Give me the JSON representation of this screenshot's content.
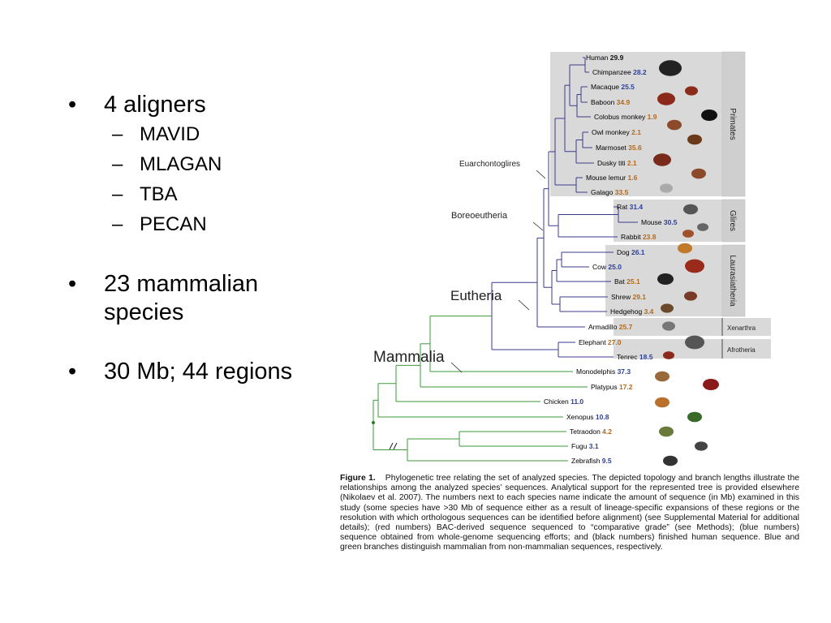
{
  "bullets": [
    {
      "text": "4 aligners",
      "sub": [
        "MAVID",
        "MLAGAN",
        "TBA",
        "PECAN"
      ]
    },
    {
      "text": "23 mammalian species",
      "sub": []
    },
    {
      "text": "30 Mb; 44 regions",
      "sub": []
    }
  ],
  "bullet_symbol": "•",
  "dash_symbol": "–",
  "figure": {
    "species": [
      {
        "name": "Human",
        "value": "29.9",
        "color": "black"
      },
      {
        "name": "Chimpanzee",
        "value": "28.2",
        "color": "blue"
      },
      {
        "name": "Macaque",
        "value": "25.5",
        "color": "blue"
      },
      {
        "name": "Baboon",
        "value": "34.9",
        "color": "red"
      },
      {
        "name": "Colobus monkey",
        "value": "1.9",
        "color": "red"
      },
      {
        "name": "Owl monkey",
        "value": "2.1",
        "color": "red"
      },
      {
        "name": "Marmoset",
        "value": "35.6",
        "color": "red"
      },
      {
        "name": "Dusky titi",
        "value": "2.1",
        "color": "red"
      },
      {
        "name": "Mouse lemur",
        "value": "1.6",
        "color": "red"
      },
      {
        "name": "Galago",
        "value": "33.5",
        "color": "red"
      },
      {
        "name": "Rat",
        "value": "31.4",
        "color": "blue"
      },
      {
        "name": "Mouse",
        "value": "30.5",
        "color": "blue"
      },
      {
        "name": "Rabbit",
        "value": "23.8",
        "color": "red"
      },
      {
        "name": "Dog",
        "value": "26.1",
        "color": "blue"
      },
      {
        "name": "Cow",
        "value": "25.0",
        "color": "blue"
      },
      {
        "name": "Bat",
        "value": "25.1",
        "color": "red"
      },
      {
        "name": "Shrew",
        "value": "29.1",
        "color": "red"
      },
      {
        "name": "Hedgehog",
        "value": "3.4",
        "color": "red"
      },
      {
        "name": "Armadillo",
        "value": "25.7",
        "color": "red"
      },
      {
        "name": "Elephant",
        "value": "27.0",
        "color": "red"
      },
      {
        "name": "Tenrec",
        "value": "18.5",
        "color": "blue"
      },
      {
        "name": "Monodelphis",
        "value": "37.3",
        "color": "blue"
      },
      {
        "name": "Platypus",
        "value": "17.2",
        "color": "red"
      },
      {
        "name": "Chicken",
        "value": "11.0",
        "color": "blue"
      },
      {
        "name": "Xenopus",
        "value": "10.8",
        "color": "blue"
      },
      {
        "name": "Tetraodon",
        "value": "4.2",
        "color": "red"
      },
      {
        "name": "Fugu",
        "value": "3.1",
        "color": "blue"
      },
      {
        "name": "Zebrafish",
        "value": "9.5",
        "color": "blue"
      }
    ],
    "node_labels": {
      "euarchontoglires": "Euarchontoglires",
      "boreoeutheria": "Boreoeutheria",
      "eutheria": "Eutheria",
      "mammalia": "Mammalia"
    },
    "groups": [
      "Primates",
      "Glires",
      "Laurasiatheria",
      "Xenarthra",
      "Afrotheria"
    ],
    "colors": {
      "mammal_branch": "#3a3a8c",
      "nonmammal_branch": "#3f9a3a",
      "group_bg": "#d6d6d6",
      "red_number": "#b36a1c",
      "blue_number": "#2c3f9a"
    },
    "caption_label": "Figure 1.",
    "caption_text": "Phylogenetic tree relating the set of analyzed species. The depicted topology and branch lengths illustrate the relationships among the analyzed species’ sequences. Analytical support for the represented tree is provided elsewhere (Nikolaev et al. 2007). The numbers next to each species name indicate the amount of sequence (in Mb) examined in this study (some species have >30 Mb of sequence either as a result of lineage-specific expansions of these regions or the resolution with which orthologous sequences can be identified before alignment) (see Supplemental Material for additional details); (red numbers) BAC-derived sequence sequenced to “comparative grade” (see Methods); (blue numbers) sequence obtained from whole-genome sequencing efforts; and (black numbers) finished human sequence. Blue and green branches distinguish mammalian from non-mammalian sequences, respectively."
  }
}
